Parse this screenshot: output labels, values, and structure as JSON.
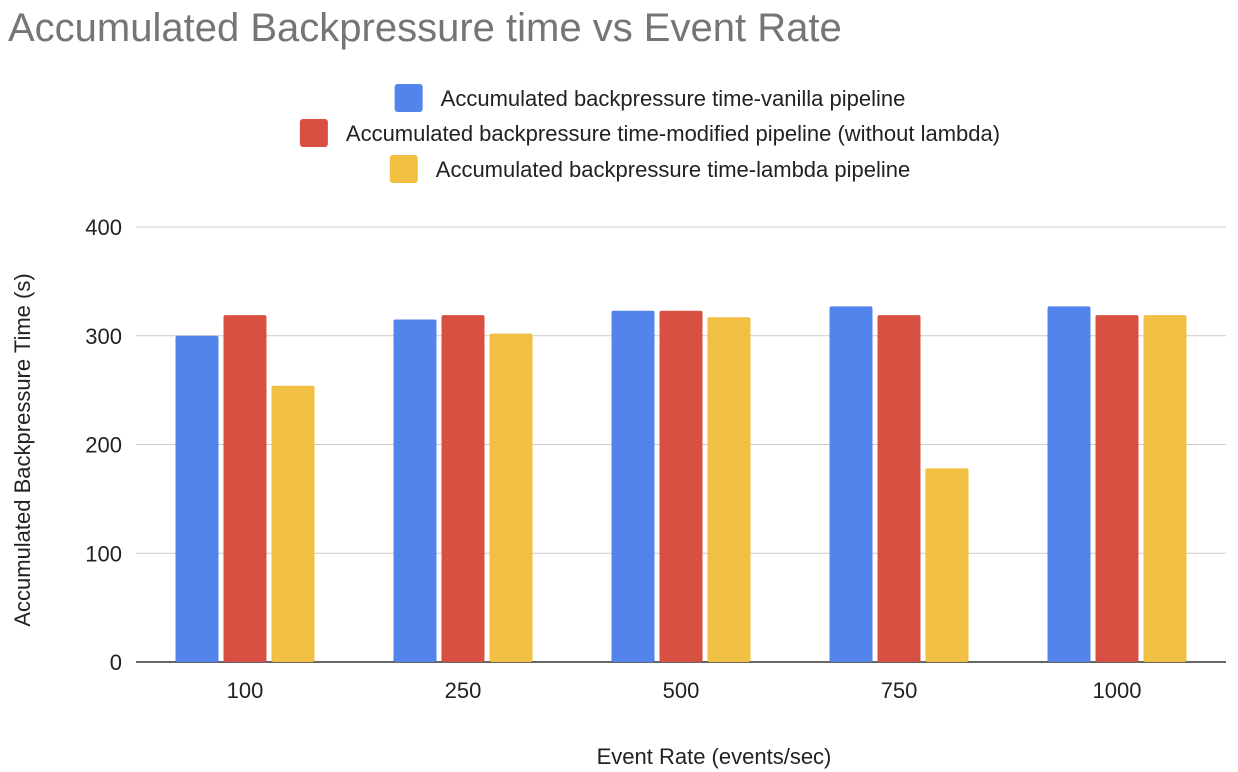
{
  "chart_data": {
    "type": "bar",
    "title": "Accumulated Backpressure time vs Event Rate",
    "xlabel": "Event Rate (events/sec)",
    "ylabel": "Accumulated Backpressure Time (s)",
    "categories": [
      "100",
      "250",
      "500",
      "750",
      "1000"
    ],
    "ylim": [
      0,
      400
    ],
    "yticks": [
      "0",
      "100",
      "200",
      "300",
      "400"
    ],
    "grid": true,
    "legend_position": "top",
    "series": [
      {
        "name": "Accumulated backpressure time-vanilla pipeline",
        "color": "#5384EB",
        "values": [
          300,
          315,
          323,
          327,
          327
        ]
      },
      {
        "name": "Accumulated backpressure time-modified pipeline (without lambda)",
        "color": "#D85041",
        "values": [
          319,
          319,
          323,
          319,
          319
        ]
      },
      {
        "name": "Accumulated backpressure time-lambda pipeline",
        "color": "#F1BF42",
        "values": [
          254,
          302,
          317,
          178,
          319
        ]
      }
    ]
  }
}
